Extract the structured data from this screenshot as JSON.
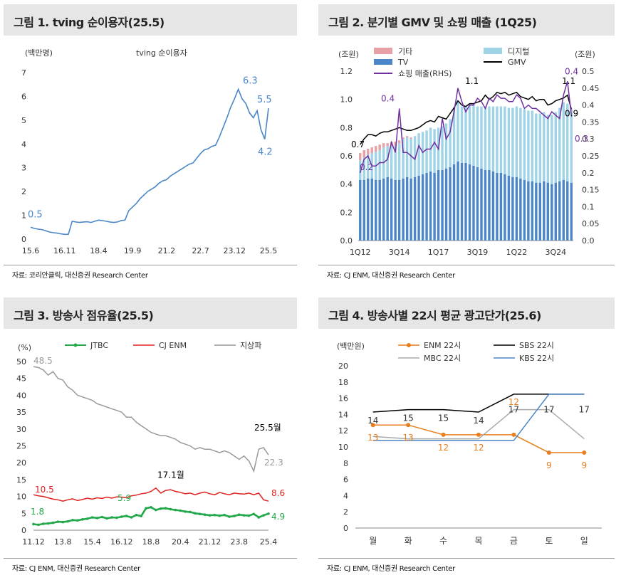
{
  "panels": [
    {
      "title": "그림 1.  tving 순이용자(25.5)",
      "source": "자료: 코리안클릭, 대신증권 Research Center"
    },
    {
      "title": "그림 2.  분기별 GMV 및 쇼핑 매출 (1Q25)",
      "source": "자료: CJ ENM, 대신증권 Research Center"
    },
    {
      "title": "그림 3.  방송사 점유율(25.5)",
      "source": "자료: CJ ENM, 대신증권 Research Center"
    },
    {
      "title": "그림 4.  방송사별 22시 평균 광고단가(25.6)",
      "source": "자료: CJ ENM, 대신증권 Research Center"
    }
  ],
  "chart_data": [
    {
      "type": "line",
      "title": "tving 순이용자",
      "ylabel": "(백만명)",
      "ylim": [
        0,
        7
      ],
      "yticks": [
        "0",
        "1",
        "2",
        "3",
        "4",
        "5",
        "6",
        "7"
      ],
      "xticks": [
        "15.6",
        "16.11",
        "18.4",
        "19.9",
        "21.2",
        "22.7",
        "23.12",
        "25.5"
      ],
      "series": [
        {
          "name": "tving 순이용자",
          "color": "#4a86c8",
          "values": [
            0.5,
            0.45,
            0.42,
            0.4,
            0.35,
            0.3,
            0.27,
            0.25,
            0.22,
            0.2,
            0.2,
            0.75,
            0.72,
            0.7,
            0.72,
            0.73,
            0.7,
            0.75,
            0.8,
            0.78,
            0.75,
            0.72,
            0.7,
            0.72,
            0.78,
            0.8,
            1.2,
            1.35,
            1.5,
            1.7,
            1.85,
            2.0,
            2.1,
            2.2,
            2.35,
            2.45,
            2.5,
            2.65,
            2.75,
            2.85,
            2.95,
            3.05,
            3.15,
            3.2,
            3.4,
            3.6,
            3.75,
            3.8,
            3.9,
            3.95,
            4.3,
            4.7,
            5.1,
            5.55,
            5.9,
            6.3,
            5.9,
            5.7,
            5.3,
            5.1,
            5.4,
            4.6,
            4.2,
            5.5
          ]
        }
      ],
      "annotations": [
        "0.5",
        "6.3",
        "5.5",
        "4.2"
      ]
    },
    {
      "type": "bar",
      "title": "분기별 GMV 및 쇼핑 매출",
      "ylabel_left": "(조원)",
      "ylabel_right": "(조원)",
      "ylim": [
        0,
        1.2
      ],
      "y2lim": [
        0,
        0.5
      ],
      "yticks": [
        "0.0",
        "0.2",
        "0.4",
        "0.6",
        "0.8",
        "1.0",
        "1.2"
      ],
      "y2ticks": [
        "0.0",
        "0.05",
        "0.1",
        "0.15",
        "0.2",
        "0.25",
        "0.3",
        "0.35",
        "0.4",
        "0.45",
        "0.5"
      ],
      "xticks": [
        "1Q12",
        "3Q14",
        "1Q17",
        "3Q19",
        "1Q22",
        "3Q24"
      ],
      "legend": [
        {
          "name": "기타",
          "color": "#e6a0a6"
        },
        {
          "name": "디지털",
          "color": "#9fd3e6"
        },
        {
          "name": "TV",
          "color": "#4a86c8"
        },
        {
          "name": "GMV",
          "color": "#000000"
        },
        {
          "name": "쇼핑 매출(RHS)",
          "color": "#7030a0"
        }
      ],
      "series": [
        {
          "name": "TV",
          "values": [
            0.43,
            0.43,
            0.44,
            0.44,
            0.43,
            0.43,
            0.44,
            0.45,
            0.44,
            0.43,
            0.43,
            0.44,
            0.45,
            0.44,
            0.45,
            0.46,
            0.47,
            0.48,
            0.49,
            0.48,
            0.5,
            0.5,
            0.51,
            0.52,
            0.54,
            0.56,
            0.55,
            0.55,
            0.54,
            0.53,
            0.52,
            0.51,
            0.5,
            0.5,
            0.49,
            0.48,
            0.48,
            0.47,
            0.46,
            0.45,
            0.45,
            0.44,
            0.43,
            0.42,
            0.42,
            0.41,
            0.41,
            0.42,
            0.41,
            0.4,
            0.41,
            0.42,
            0.43,
            0.42,
            0.41
          ]
        },
        {
          "name": "디지털",
          "values": [
            0.14,
            0.16,
            0.17,
            0.18,
            0.2,
            0.21,
            0.22,
            0.22,
            0.23,
            0.24,
            0.26,
            0.28,
            0.28,
            0.28,
            0.29,
            0.3,
            0.3,
            0.3,
            0.31,
            0.31,
            0.3,
            0.31,
            0.32,
            0.34,
            0.4,
            0.43,
            0.4,
            0.4,
            0.42,
            0.43,
            0.43,
            0.44,
            0.45,
            0.45,
            0.46,
            0.47,
            0.47,
            0.48,
            0.48,
            0.49,
            0.5,
            0.5,
            0.5,
            0.5,
            0.5,
            0.49,
            0.49,
            0.49,
            0.48,
            0.49,
            0.5,
            0.52,
            0.55,
            0.55,
            0.52
          ]
        },
        {
          "name": "기타",
          "values": [
            0.05,
            0.05,
            0.04,
            0.04,
            0.04,
            0.04,
            0.03,
            0.02,
            0.03,
            0.03,
            0.02,
            0.01,
            0.01,
            0.01,
            0.0,
            0.0,
            0.0,
            0.0,
            0.0,
            0.0,
            0.0,
            0.0,
            0.0,
            0.0,
            0.0,
            0.0,
            0.0,
            0.0,
            0.0,
            0.0,
            0.0,
            0.0,
            0.0,
            0.0,
            0.0,
            0.0,
            0.0,
            0.0,
            0.0,
            0.0,
            0.0,
            0.0,
            0.0,
            0.0,
            0.0,
            0.0,
            0.0,
            0.0,
            0.0,
            0.0,
            0.0,
            0.0,
            0.0,
            0.0,
            0.0
          ]
        },
        {
          "name": "GMV",
          "values": [
            0.68,
            0.72,
            0.75,
            0.75,
            0.74,
            0.76,
            0.77,
            0.77,
            0.78,
            0.79,
            0.8,
            0.79,
            0.78,
            0.78,
            0.79,
            0.8,
            0.82,
            0.84,
            0.85,
            0.84,
            0.88,
            0.87,
            0.86,
            0.9,
            0.94,
            0.99,
            0.96,
            0.95,
            0.97,
            0.97,
            0.98,
            0.99,
            1.03,
            1.0,
            1.02,
            1.05,
            1.04,
            1.05,
            1.03,
            1.04,
            1.05,
            1.02,
            1.01,
            1.0,
            1.02,
            0.99,
            1.0,
            1.0,
            0.96,
            0.97,
            0.99,
            1.0,
            1.01,
            1.03,
            0.93
          ]
        },
        {
          "name": "쇼핑 매출(RHS)",
          "values": [
            0.2,
            0.24,
            0.25,
            0.22,
            0.22,
            0.23,
            0.23,
            0.24,
            0.29,
            0.26,
            0.39,
            0.26,
            0.26,
            0.25,
            0.24,
            0.28,
            0.26,
            0.27,
            0.27,
            0.29,
            0.27,
            0.36,
            0.3,
            0.32,
            0.38,
            0.45,
            0.41,
            0.38,
            0.4,
            0.4,
            0.42,
            0.41,
            0.39,
            0.42,
            0.41,
            0.43,
            0.42,
            0.42,
            0.41,
            0.41,
            0.43,
            0.42,
            0.39,
            0.4,
            0.39,
            0.39,
            0.38,
            0.37,
            0.36,
            0.38,
            0.37,
            0.36,
            0.43,
            0.47,
            0.37
          ]
        }
      ],
      "annotations": [
        "0.7",
        "0.2",
        "0.4",
        "1.1",
        "1.1",
        "0.4",
        "0.3",
        "0.9"
      ]
    },
    {
      "type": "line",
      "title": "방송사 점유율",
      "ylabel": "(%)",
      "ylim": [
        0,
        50
      ],
      "yticks": [
        "0",
        "5",
        "10",
        "15",
        "20",
        "25",
        "30",
        "35",
        "40",
        "45",
        "50"
      ],
      "xticks": [
        "11.12",
        "13.8",
        "15.4",
        "16.12",
        "18.8",
        "20.4",
        "21.12",
        "23.8",
        "25.4"
      ],
      "series": [
        {
          "name": "JTBC",
          "color": "#22a84a",
          "values": [
            1.8,
            1.6,
            1.9,
            2.0,
            2.2,
            2.5,
            2.4,
            2.6,
            3.0,
            2.9,
            3.2,
            3.4,
            3.8,
            3.6,
            3.9,
            3.5,
            3.8,
            3.7,
            4.0,
            4.2,
            3.8,
            4.5,
            4.2,
            6.5,
            6.8,
            6.0,
            6.4,
            6.5,
            6.2,
            6.0,
            5.8,
            5.5,
            5.4,
            5.0,
            4.8,
            4.6,
            4.4,
            4.5,
            4.3,
            4.5,
            4.0,
            4.2,
            4.6,
            4.4,
            4.3,
            4.8,
            3.8,
            4.4,
            4.9
          ]
        },
        {
          "name": "CJ ENM",
          "color": "#e02020",
          "values": [
            10.5,
            10.2,
            10.0,
            9.6,
            9.2,
            9.0,
            8.6,
            9.0,
            9.3,
            8.8,
            9.1,
            9.5,
            9.2,
            9.6,
            9.4,
            9.8,
            9.5,
            9.9,
            9.8,
            9.6,
            10.2,
            10.4,
            10.8,
            11.0,
            11.5,
            12.5,
            11.0,
            11.8,
            12.0,
            11.5,
            11.2,
            10.8,
            11.0,
            10.5,
            11.0,
            11.3,
            10.8,
            10.5,
            11.2,
            10.8,
            10.5,
            11.0,
            10.8,
            10.7,
            11.0,
            10.5,
            11.0,
            9.0,
            8.6
          ]
        },
        {
          "name": "지상파",
          "color": "#9a9a9a",
          "values": [
            48.5,
            48.2,
            47.5,
            46.0,
            47.0,
            45.0,
            44.5,
            42.5,
            41.5,
            40.0,
            39.5,
            39.0,
            38.5,
            37.5,
            37.0,
            36.5,
            36.0,
            35.5,
            35.0,
            33.5,
            33.5,
            32.0,
            31.0,
            30.0,
            29.0,
            28.5,
            28.0,
            28.0,
            27.5,
            27.0,
            26.0,
            25.5,
            25.0,
            24.0,
            24.5,
            24.0,
            24.0,
            23.5,
            23.0,
            23.5,
            23.0,
            22.0,
            21.0,
            22.0,
            20.5,
            17.5,
            24.0,
            24.5,
            22.3
          ]
        }
      ],
      "annotations": [
        "48.5",
        "25.5월",
        "22.3",
        "17.1월",
        "10.5",
        "8.6",
        "5.9",
        "1.8",
        "4.9"
      ]
    },
    {
      "type": "line",
      "title": "방송사별 22시 평균 광고단가",
      "ylabel": "(백만원)",
      "ylim": [
        0,
        20
      ],
      "yticks": [
        "0",
        "2",
        "4",
        "6",
        "8",
        "10",
        "12",
        "14",
        "16",
        "18",
        "20"
      ],
      "categories": [
        "월",
        "화",
        "수",
        "목",
        "금",
        "토",
        "일"
      ],
      "series": [
        {
          "name": "ENM 22시",
          "color": "#e87e1c",
          "values": [
            12.7,
            12.7,
            11.5,
            11.5,
            11.5,
            9.3,
            9.3
          ]
        },
        {
          "name": "SBS 22시",
          "color": "#000000",
          "values": [
            14.3,
            14.6,
            14.6,
            14.3,
            16.5,
            16.5,
            16.5
          ]
        },
        {
          "name": "MBC 22시",
          "color": "#aaaaaa",
          "values": [
            11.3,
            11.0,
            11.0,
            11.0,
            14.6,
            14.6,
            11.0
          ]
        },
        {
          "name": "KBS 22시",
          "color": "#4a86c8",
          "values": [
            10.8,
            10.8,
            10.8,
            10.8,
            10.8,
            16.5,
            16.5
          ]
        }
      ],
      "labels": {
        "ENM 22시": [
          "13",
          "13",
          "12",
          "12",
          "12",
          "9",
          "9"
        ],
        "SBS 22시": [
          "14",
          "15",
          "15",
          "14",
          "17",
          "17",
          "17"
        ]
      }
    }
  ]
}
